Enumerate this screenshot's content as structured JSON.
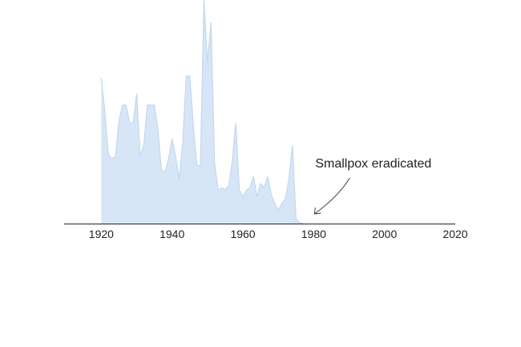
{
  "chart_data": {
    "type": "area",
    "title": "",
    "xlabel": "",
    "ylabel": "",
    "xlim": [
      1909.5,
      2020
    ],
    "ylim": [
      0,
      1
    ],
    "x_ticks": [
      1920,
      1940,
      1960,
      1980,
      2000,
      2020
    ],
    "grid": false,
    "legend": "none",
    "series": [
      {
        "color": "#d7e6f6",
        "stroke": "#c2d8ef",
        "x": [
          1920,
          1921,
          1922,
          1923,
          1924,
          1925,
          1926,
          1927,
          1928,
          1929,
          1930,
          1931,
          1932,
          1933,
          1934,
          1935,
          1936,
          1937,
          1938,
          1939,
          1940,
          1941,
          1942,
          1943,
          1944,
          1945,
          1946,
          1947,
          1948,
          1949,
          1950,
          1951,
          1952,
          1953,
          1954,
          1955,
          1956,
          1957,
          1958,
          1959,
          1960,
          1961,
          1962,
          1963,
          1964,
          1965,
          1966,
          1967,
          1968,
          1969,
          1970,
          1971,
          1972,
          1973,
          1974,
          1975,
          1976,
          1977
        ],
        "y": [
          0.65,
          0.5,
          0.31,
          0.29,
          0.3,
          0.46,
          0.53,
          0.53,
          0.45,
          0.45,
          0.58,
          0.3,
          0.35,
          0.53,
          0.53,
          0.53,
          0.42,
          0.24,
          0.23,
          0.29,
          0.38,
          0.3,
          0.2,
          0.36,
          0.66,
          0.66,
          0.44,
          0.26,
          0.26,
          1.0,
          0.72,
          0.9,
          0.27,
          0.15,
          0.16,
          0.15,
          0.17,
          0.28,
          0.45,
          0.15,
          0.12,
          0.15,
          0.16,
          0.21,
          0.12,
          0.18,
          0.16,
          0.21,
          0.13,
          0.09,
          0.06,
          0.09,
          0.11,
          0.2,
          0.35,
          0.02,
          0.005,
          0.0
        ]
      }
    ],
    "annotations": [
      {
        "text": "Smallpox eradicated",
        "x": 1980,
        "y": 0.0
      }
    ]
  }
}
